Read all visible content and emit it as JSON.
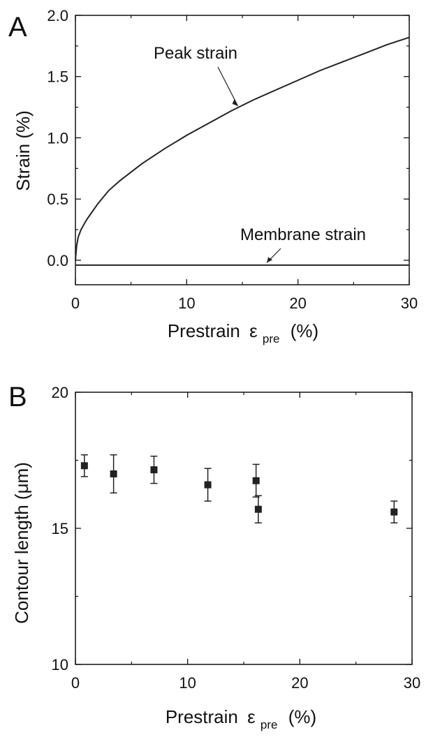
{
  "chart_data": [
    {
      "type": "line",
      "panel_label": "A",
      "xlabel": "Prestrain",
      "xlabel_symbol": "ε",
      "xlabel_subscript": "pre",
      "xlabel_unit": "(%)",
      "ylabel": "Strain (%)",
      "xlim": [
        0,
        30
      ],
      "ylim": [
        -0.2,
        2.0
      ],
      "x_ticks": [
        "0",
        "10",
        "20",
        "30"
      ],
      "y_ticks": [
        "0.0",
        "0.5",
        "1.0",
        "1.5",
        "2.0"
      ],
      "grid": false,
      "series": [
        {
          "name": "Peak strain",
          "x": [
            0,
            0.1,
            0.25,
            0.5,
            1,
            2,
            3,
            4,
            5,
            6,
            8,
            10,
            12,
            14,
            16,
            18,
            20,
            22,
            24,
            26,
            28,
            30
          ],
          "y": [
            0,
            0.11,
            0.19,
            0.25,
            0.33,
            0.46,
            0.57,
            0.65,
            0.72,
            0.79,
            0.91,
            1.02,
            1.12,
            1.22,
            1.31,
            1.39,
            1.47,
            1.55,
            1.62,
            1.69,
            1.76,
            1.82
          ]
        },
        {
          "name": "Membrane strain",
          "x": [
            0,
            30
          ],
          "y": [
            -0.04,
            -0.04
          ]
        }
      ],
      "annotations": [
        {
          "text": "Peak strain",
          "points_to": [
            14.6,
            1.26
          ]
        },
        {
          "text": "Membrane strain",
          "points_to": [
            17.2,
            -0.02
          ]
        }
      ]
    },
    {
      "type": "scatter",
      "panel_label": "B",
      "xlabel": "Prestrain",
      "xlabel_symbol": "ε",
      "xlabel_subscript": "pre",
      "xlabel_unit": "(%)",
      "ylabel": "Contour length (μm)",
      "xlim": [
        0,
        30
      ],
      "ylim": [
        10,
        20
      ],
      "x_ticks": [
        "0",
        "10",
        "20",
        "30"
      ],
      "y_ticks": [
        "10",
        "15",
        "20"
      ],
      "grid": false,
      "series": [
        {
          "x": [
            0.8,
            3.4,
            7.0,
            11.8,
            16.1,
            16.3,
            28.4
          ],
          "y": [
            17.3,
            17.0,
            17.15,
            16.6,
            16.75,
            15.7,
            15.6
          ],
          "error": [
            0.4,
            0.7,
            0.5,
            0.6,
            0.6,
            0.5,
            0.4
          ]
        }
      ]
    }
  ]
}
